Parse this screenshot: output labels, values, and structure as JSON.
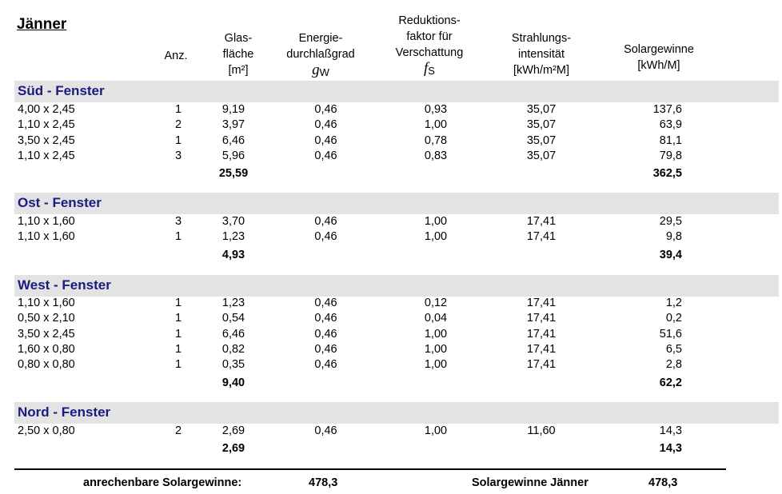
{
  "title": "Jänner",
  "headers": {
    "anz": "Anz.",
    "glas": [
      "Glas-",
      "fläche",
      "[m²]"
    ],
    "energie": [
      "Energie-",
      "durchlaßgrad"
    ],
    "g_sym": "g",
    "g_sub": "W",
    "reduktion": [
      "Reduktions-",
      "faktor für",
      "Verschattung"
    ],
    "fs_sym": "f",
    "fs_sub": "S",
    "strahlung": [
      "Strahlungs-",
      "intensität",
      "[kWh/m²M]"
    ],
    "solar": [
      "Solargewinne",
      "[kWh/M]"
    ]
  },
  "sections": [
    {
      "name": "Süd - Fenster",
      "rows": [
        {
          "dim": "4,00 x 2,45",
          "anz": "1",
          "glas": "9,19",
          "g": "0,46",
          "fs": "0,93",
          "str": "35,07",
          "sol": "137,6"
        },
        {
          "dim": "1,10 x 2,45",
          "anz": "2",
          "glas": "3,97",
          "g": "0,46",
          "fs": "1,00",
          "str": "35,07",
          "sol": "63,9"
        },
        {
          "dim": "3,50 x 2,45",
          "anz": "1",
          "glas": "6,46",
          "g": "0,46",
          "fs": "0,78",
          "str": "35,07",
          "sol": "81,1"
        },
        {
          "dim": "1,10 x 2,45",
          "anz": "3",
          "glas": "5,96",
          "g": "0,46",
          "fs": "0,83",
          "str": "35,07",
          "sol": "79,8"
        }
      ],
      "sum_glas": "25,59",
      "sum_sol": "362,5"
    },
    {
      "name": "Ost - Fenster",
      "rows": [
        {
          "dim": "1,10 x 1,60",
          "anz": "3",
          "glas": "3,70",
          "g": "0,46",
          "fs": "1,00",
          "str": "17,41",
          "sol": "29,5"
        },
        {
          "dim": "1,10 x 1,60",
          "anz": "1",
          "glas": "1,23",
          "g": "0,46",
          "fs": "1,00",
          "str": "17,41",
          "sol": "9,8"
        }
      ],
      "sum_glas": "4,93",
      "sum_sol": "39,4"
    },
    {
      "name": "West - Fenster",
      "rows": [
        {
          "dim": "1,10 x 1,60",
          "anz": "1",
          "glas": "1,23",
          "g": "0,46",
          "fs": "0,12",
          "str": "17,41",
          "sol": "1,2"
        },
        {
          "dim": "0,50 x 2,10",
          "anz": "1",
          "glas": "0,54",
          "g": "0,46",
          "fs": "0,04",
          "str": "17,41",
          "sol": "0,2"
        },
        {
          "dim": "3,50 x 2,45",
          "anz": "1",
          "glas": "6,46",
          "g": "0,46",
          "fs": "1,00",
          "str": "17,41",
          "sol": "51,6"
        },
        {
          "dim": "1,60 x 0,80",
          "anz": "1",
          "glas": "0,82",
          "g": "0,46",
          "fs": "1,00",
          "str": "17,41",
          "sol": "6,5"
        },
        {
          "dim": "0,80 x 0,80",
          "anz": "1",
          "glas": "0,35",
          "g": "0,46",
          "fs": "1,00",
          "str": "17,41",
          "sol": "2,8"
        }
      ],
      "sum_glas": "9,40",
      "sum_sol": "62,2"
    },
    {
      "name": "Nord - Fenster",
      "rows": [
        {
          "dim": "2,50 x 0,80",
          "anz": "2",
          "glas": "2,69",
          "g": "0,46",
          "fs": "1,00",
          "str": "11,60",
          "sol": "14,3"
        }
      ],
      "sum_glas": "2,69",
      "sum_sol": "14,3"
    }
  ],
  "footer": {
    "label_left": "anrechenbare Solargewinne:",
    "value_left": "478,3",
    "label_right": "Solargewinne Jänner",
    "value_right": "478,3"
  }
}
